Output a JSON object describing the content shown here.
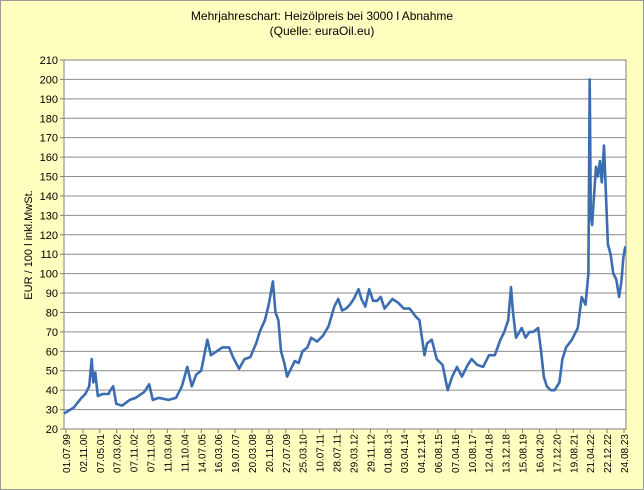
{
  "chart_data": {
    "type": "line",
    "title": "Mehrjahreschart:  Heizölpreis  bei 3000  l Abnahme",
    "subtitle": "(Quelle:  euraOil.eu)",
    "xlabel": "",
    "ylabel": "EUR / 100 l inkl.MwSt.",
    "ylim": [
      20,
      210
    ],
    "yticks": [
      20,
      30,
      40,
      50,
      60,
      70,
      80,
      90,
      100,
      110,
      120,
      130,
      140,
      150,
      160,
      170,
      180,
      190,
      200,
      210
    ],
    "grid": "horizontal",
    "legend": "none",
    "line_color": "#3c6db0",
    "xlim": [
      "1999-07-01",
      "2023-10-01"
    ],
    "x_tick_labels": [
      "01.07.99",
      "02.11.00",
      "07.05.01",
      "07.03.02",
      "07.11.02",
      "07.11.03",
      "11.03.04",
      "11.10.04",
      "14.07.05",
      "16.03.06",
      "19.07.07",
      "20.03.08",
      "20.11.08",
      "27.07.09",
      "25.03.10",
      "10.07.11",
      "28.07.11",
      "29.03.12",
      "29.11.12",
      "01.08.13",
      "03.04.14",
      "04.12.14",
      "06.08.15",
      "07.04.16",
      "10.08.17",
      "12.04.18",
      "13.12.18",
      "15.08.19",
      "16.04.20",
      "17.12.20",
      "19.08.21",
      "21.04.22",
      "22.12.22",
      "24.08.23"
    ],
    "series": [
      {
        "values": [
          [
            "1999-07-01",
            28
          ],
          [
            "1999-12-01",
            31
          ],
          [
            "2000-04-01",
            36
          ],
          [
            "2000-06-01",
            38
          ],
          [
            "2000-08-01",
            42
          ],
          [
            "2000-09-10",
            56
          ],
          [
            "2000-10-05",
            44
          ],
          [
            "2000-11-05",
            49
          ],
          [
            "2000-12-15",
            37
          ],
          [
            "2001-03-01",
            38
          ],
          [
            "2001-06-01",
            38
          ],
          [
            "2001-07-01",
            40
          ],
          [
            "2001-08-15",
            42
          ],
          [
            "2001-10-01",
            33
          ],
          [
            "2002-01-01",
            32
          ],
          [
            "2002-05-01",
            35
          ],
          [
            "2002-08-01",
            36
          ],
          [
            "2002-12-15",
            39
          ],
          [
            "2003-03-05",
            43
          ],
          [
            "2003-05-01",
            35
          ],
          [
            "2003-08-01",
            36
          ],
          [
            "2004-01-01",
            35
          ],
          [
            "2004-05-01",
            36
          ],
          [
            "2004-08-01",
            42
          ],
          [
            "2004-10-25",
            52
          ],
          [
            "2005-01-05",
            42
          ],
          [
            "2005-03-15",
            48
          ],
          [
            "2005-06-01",
            50
          ],
          [
            "2005-09-05",
            66
          ],
          [
            "2005-11-01",
            58
          ],
          [
            "2006-02-01",
            60
          ],
          [
            "2006-05-01",
            62
          ],
          [
            "2006-08-15",
            62
          ],
          [
            "2006-10-15",
            57
          ],
          [
            "2007-01-20",
            51
          ],
          [
            "2007-04-15",
            56
          ],
          [
            "2007-07-15",
            57
          ],
          [
            "2007-10-15",
            64
          ],
          [
            "2007-12-10",
            70
          ],
          [
            "2008-03-01",
            76
          ],
          [
            "2008-05-01",
            84
          ],
          [
            "2008-07-05",
            96
          ],
          [
            "2008-08-15",
            80
          ],
          [
            "2008-10-01",
            76
          ],
          [
            "2008-11-10",
            60
          ],
          [
            "2009-01-01",
            54
          ],
          [
            "2009-02-15",
            47
          ],
          [
            "2009-04-01",
            50
          ],
          [
            "2009-06-15",
            55
          ],
          [
            "2009-08-15",
            54
          ],
          [
            "2009-10-15",
            60
          ],
          [
            "2010-01-01",
            62
          ],
          [
            "2010-03-01",
            67
          ],
          [
            "2010-06-01",
            65
          ],
          [
            "2010-09-01",
            68
          ],
          [
            "2010-12-01",
            73
          ],
          [
            "2011-03-01",
            83
          ],
          [
            "2011-05-01",
            87
          ],
          [
            "2011-07-01",
            81
          ],
          [
            "2011-09-01",
            82
          ],
          [
            "2011-11-01",
            84
          ],
          [
            "2012-01-01",
            87
          ],
          [
            "2012-03-15",
            92
          ],
          [
            "2012-05-01",
            87
          ],
          [
            "2012-07-01",
            83
          ],
          [
            "2012-09-01",
            92
          ],
          [
            "2012-11-01",
            86
          ],
          [
            "2013-01-01",
            86
          ],
          [
            "2013-03-01",
            88
          ],
          [
            "2013-05-01",
            82
          ],
          [
            "2013-09-01",
            87
          ],
          [
            "2013-12-01",
            85
          ],
          [
            "2014-03-01",
            82
          ],
          [
            "2014-06-01",
            82
          ],
          [
            "2014-09-01",
            78
          ],
          [
            "2014-11-01",
            76
          ],
          [
            "2015-01-20",
            58
          ],
          [
            "2015-03-01",
            64
          ],
          [
            "2015-05-15",
            66
          ],
          [
            "2015-08-01",
            56
          ],
          [
            "2015-11-01",
            53
          ],
          [
            "2016-01-20",
            40
          ],
          [
            "2016-04-01",
            47
          ],
          [
            "2016-06-15",
            52
          ],
          [
            "2016-09-01",
            47
          ],
          [
            "2016-12-01",
            53
          ],
          [
            "2017-02-01",
            56
          ],
          [
            "2017-05-01",
            53
          ],
          [
            "2017-08-01",
            52
          ],
          [
            "2017-11-01",
            58
          ],
          [
            "2018-02-01",
            58
          ],
          [
            "2018-05-01",
            66
          ],
          [
            "2018-07-01",
            70
          ],
          [
            "2018-09-01",
            76
          ],
          [
            "2018-10-15",
            93
          ],
          [
            "2018-11-15",
            80
          ],
          [
            "2019-01-01",
            67
          ],
          [
            "2019-04-01",
            72
          ],
          [
            "2019-06-01",
            67
          ],
          [
            "2019-08-01",
            70
          ],
          [
            "2019-10-01",
            70
          ],
          [
            "2019-12-15",
            72
          ],
          [
            "2020-02-01",
            60
          ],
          [
            "2020-03-15",
            47
          ],
          [
            "2020-05-01",
            42
          ],
          [
            "2020-07-01",
            40
          ],
          [
            "2020-09-01",
            40
          ],
          [
            "2020-11-15",
            44
          ],
          [
            "2021-01-01",
            56
          ],
          [
            "2021-03-01",
            62
          ],
          [
            "2021-06-01",
            66
          ],
          [
            "2021-09-01",
            72
          ],
          [
            "2021-11-01",
            88
          ],
          [
            "2022-01-01",
            84
          ],
          [
            "2022-02-15",
            100
          ],
          [
            "2022-03-08",
            200
          ],
          [
            "2022-03-25",
            130
          ],
          [
            "2022-04-15",
            125
          ],
          [
            "2022-05-15",
            140
          ],
          [
            "2022-06-15",
            155
          ],
          [
            "2022-07-15",
            150
          ],
          [
            "2022-08-15",
            158
          ],
          [
            "2022-09-15",
            147
          ],
          [
            "2022-10-20",
            166
          ],
          [
            "2022-11-20",
            140
          ],
          [
            "2022-12-20",
            115
          ],
          [
            "2023-02-01",
            110
          ],
          [
            "2023-03-15",
            100
          ],
          [
            "2023-05-01",
            97
          ],
          [
            "2023-06-15",
            88
          ],
          [
            "2023-07-20",
            96
          ],
          [
            "2023-08-20",
            108
          ],
          [
            "2023-09-20",
            114
          ]
        ]
      }
    ]
  }
}
